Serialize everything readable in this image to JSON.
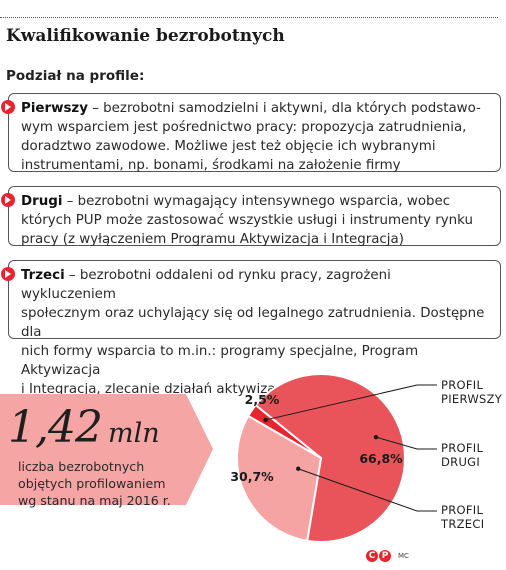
{
  "title": "Kwalifikowanie bezrobotnych",
  "subtitle": "Podział na profile:",
  "profiles": [
    {
      "name": "Pierwszy",
      "lines": [
        " – bezrobotni samodzielni i aktywni, dla których podstawo-",
        "wym wsparciem jest pośrednictwo pracy: propozycja zatrudnienia,",
        "doradztwo zawodowe. Możliwe jest też objęcie ich wybranymi",
        "instrumentami, np. bonami, środkami na założenie firmy"
      ]
    },
    {
      "name": "Drugi",
      "lines": [
        " – bezrobotni wymagający intensywnego wsparcia, wobec",
        "których PUP może zastosować wszystkie usługi i instrumenty rynku",
        "pracy (z wyłączeniem Programu Aktywizacja i Integracja)"
      ]
    },
    {
      "name": "Trzeci",
      "lines": [
        " – bezrobotni oddaleni od rynku pracy, zagrożeni wykluczeniem",
        "społecznym oraz uchylający się od legalnego zatrudnienia. Dostępne dla",
        "nich formy wsparcia to m.in.: programy specjalne, Program Aktywizacja",
        "i Integracja, zlecanie działań aktywizacyjnych"
      ]
    }
  ],
  "stat": {
    "number": "1,42",
    "unit": "mln",
    "caption_lines": [
      "liczba bezrobotnych",
      "objętych profilowaniem",
      "wg stanu na maj 2016 r."
    ]
  },
  "footer": {
    "logo_c": "C",
    "logo_p": "P",
    "credit": "MC"
  },
  "colors": {
    "accent": "#e8242f",
    "drugi": "#e8545a",
    "trzeci": "#f5a3a3",
    "stat_panel": "#f6a5a5"
  },
  "chart_data": {
    "type": "pie",
    "style": "donut",
    "unit": "%",
    "labels": [
      "PROFIL PIERWSZY",
      "PROFIL DRUGI",
      "PROFIL TRZECI"
    ],
    "values": [
      2.5,
      66.8,
      30.7
    ],
    "value_labels": [
      "2,5%",
      "66,8%",
      "30,7%"
    ],
    "label_lines": [
      [
        "PROFIL",
        "PIERWSZY"
      ],
      [
        "PROFIL",
        "DRUGI"
      ],
      [
        "PROFIL",
        "TRZECI"
      ]
    ],
    "colors": [
      "#e8242f",
      "#e8545a",
      "#f5a3a3"
    ],
    "legend": "right"
  }
}
